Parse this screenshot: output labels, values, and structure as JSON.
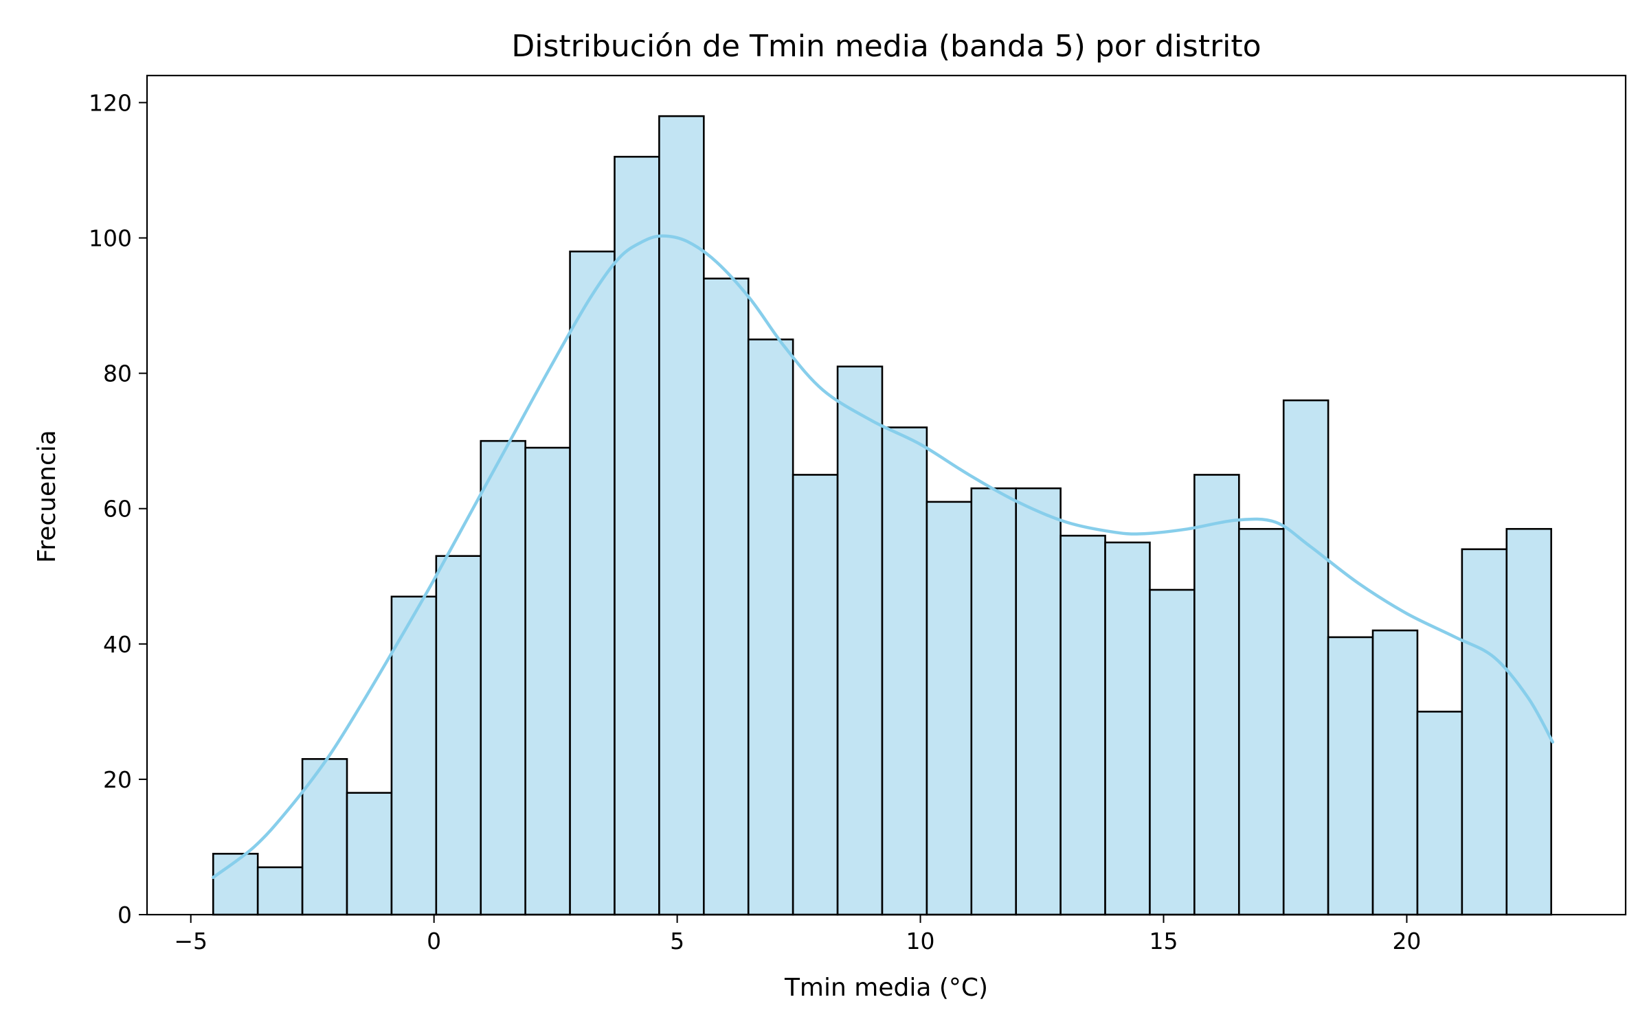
{
  "chart_data": {
    "type": "bar",
    "subtype": "histogram",
    "title": "Distribución de Tmin media (banda 5) por distrito",
    "xlabel": "Tmin media (°C)",
    "ylabel": "Frecuencia",
    "xlim": [
      -5.9,
      24.5
    ],
    "ylim": [
      0,
      124
    ],
    "x_ticks": [
      {
        "value": -5,
        "label": "−5"
      },
      {
        "value": 0,
        "label": "0"
      },
      {
        "value": 5,
        "label": "5"
      },
      {
        "value": 10,
        "label": "10"
      },
      {
        "value": 15,
        "label": "15"
      },
      {
        "value": 20,
        "label": "20"
      }
    ],
    "y_ticks": [
      {
        "value": 0,
        "label": "0"
      },
      {
        "value": 20,
        "label": "20"
      },
      {
        "value": 40,
        "label": "40"
      },
      {
        "value": 60,
        "label": "60"
      },
      {
        "value": 80,
        "label": "80"
      },
      {
        "value": 100,
        "label": "100"
      },
      {
        "value": 120,
        "label": "120"
      }
    ],
    "bin_start": -4.54,
    "bin_width": 0.917,
    "counts": [
      9,
      7,
      23,
      18,
      47,
      53,
      70,
      69,
      98,
      112,
      118,
      94,
      85,
      65,
      81,
      72,
      61,
      63,
      63,
      56,
      55,
      48,
      65,
      57,
      76,
      41,
      42,
      30,
      54,
      57
    ],
    "kde": {
      "x": [
        -4.54,
        -3.7,
        -3.0,
        -2.2,
        -1.5,
        -0.8,
        0.0,
        0.8,
        1.6,
        2.4,
        3.2,
        3.8,
        4.3,
        4.7,
        5.2,
        5.8,
        6.5,
        7.2,
        8.0,
        9.0,
        10.0,
        11.0,
        12.0,
        13.0,
        14.0,
        14.6,
        15.5,
        16.5,
        17.3,
        18.0,
        19.0,
        20.0,
        21.0,
        21.8,
        22.5,
        23.0
      ],
      "y": [
        5.5,
        10,
        15.5,
        23,
        31,
        39.5,
        49.5,
        60,
        70.5,
        81,
        91,
        97,
        99.5,
        100.3,
        99.5,
        96.5,
        91,
        84,
        77.5,
        73,
        69.5,
        65,
        61,
        58,
        56.5,
        56.3,
        57,
        58.3,
        58,
        54.5,
        49,
        44.5,
        41,
        38,
        32,
        25.5
      ]
    },
    "colors": {
      "bar_fill": "#c2e4f3",
      "bar_edge": "#000000",
      "kde_line": "#87ceeb"
    },
    "grid": false,
    "legend": "none"
  }
}
